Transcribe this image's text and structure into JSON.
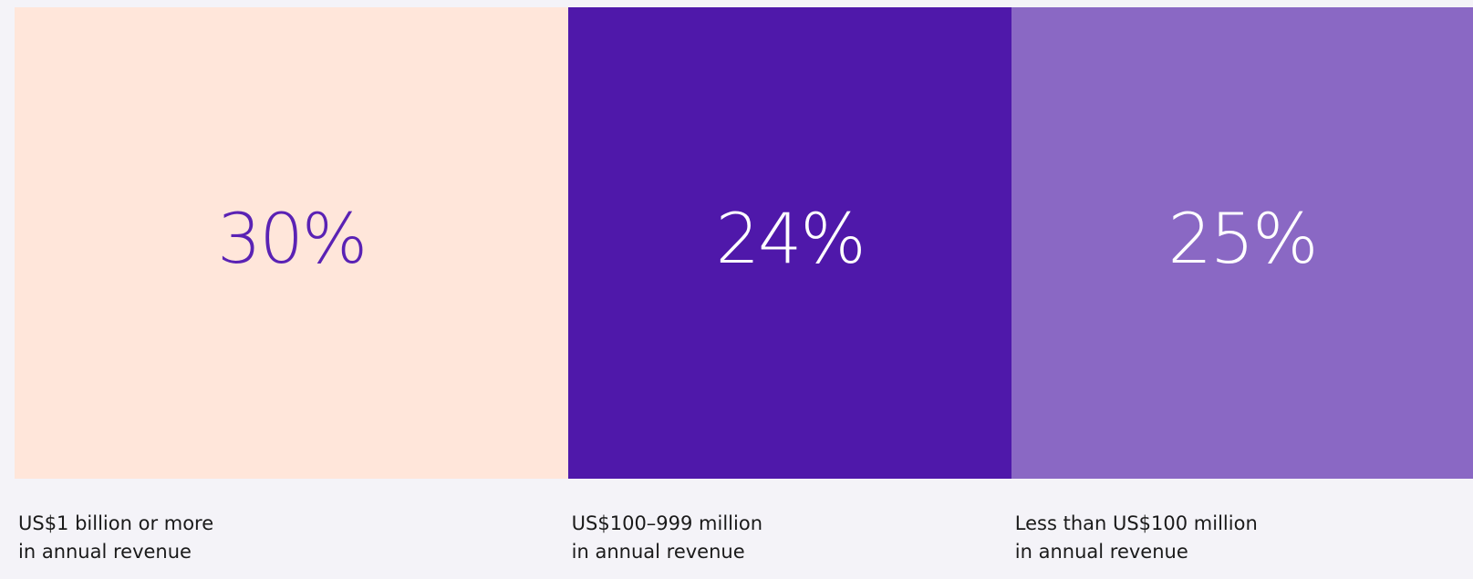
{
  "chart_data": {
    "type": "proportion-bar",
    "categories": [
      "US$1 billion or more\nin annual revenue",
      "US$100–999 million\nin annual revenue",
      "Less than US$100 million\nin annual revenue"
    ],
    "values": [
      30,
      24,
      25
    ],
    "value_labels": [
      "30%",
      "24%",
      "25%"
    ],
    "colors": [
      "#ffe6da",
      "#4f18aa",
      "#8a68c4"
    ],
    "label_colors": [
      "#5a22b4",
      "#ffffff",
      "#ffffff"
    ]
  }
}
